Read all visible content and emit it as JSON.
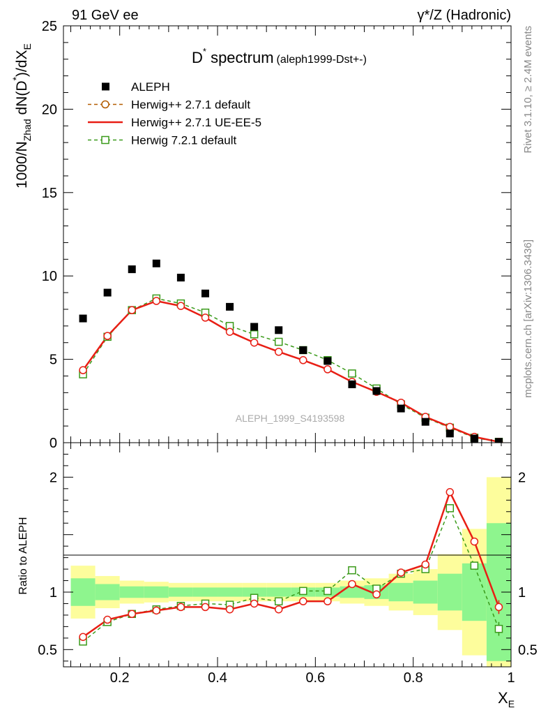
{
  "header": {
    "left": "91 GeV ee",
    "right": "γ*/Z (Hadronic)"
  },
  "side_labels": {
    "rivet": "Rivet 3.1.10, ≥ 2.4M events",
    "mcplots": "mcplots.cern.ch [arXiv:1306.3436]"
  },
  "title": {
    "main_base": "D",
    "main_sup": "*",
    "main_rest": " spectrum",
    "sub": "(aleph1999-Dst+-)"
  },
  "watermark": "ALEPH_1999_S4193598",
  "colors": {
    "data": "#000000",
    "herwigpp_default": "#b35c00",
    "herwigpp_ueee5": "#e81e14",
    "herwig7": "#3a9a1a",
    "band_inner": "#8ef58e",
    "band_outer": "#fdfd9c"
  },
  "chart_data": [
    {
      "type": "scatter",
      "panel": "main",
      "ylabel": "1000/N_Zhad dN(D*)/dX_E",
      "ylabel_parts": {
        "a": "1000/N",
        "a_sub": "Zhad",
        "b": " dN(D",
        "b_sup": "*",
        "c": ")/dX",
        "c_sub": "E"
      },
      "xlim": [
        0.085,
        1.0
      ],
      "ylim": [
        0,
        25
      ],
      "yticks": [
        0,
        5,
        10,
        15,
        20,
        25
      ],
      "x": [
        0.125,
        0.175,
        0.225,
        0.275,
        0.325,
        0.375,
        0.425,
        0.475,
        0.525,
        0.575,
        0.625,
        0.675,
        0.725,
        0.775,
        0.825,
        0.875,
        0.925,
        0.975
      ],
      "series": [
        {
          "name": "ALEPH",
          "key": "data",
          "marker": "square-filled",
          "values": [
            7.45,
            9.0,
            10.4,
            10.75,
            9.9,
            8.95,
            8.15,
            6.95,
            6.75,
            5.55,
            4.9,
            3.5,
            3.1,
            2.05,
            1.25,
            0.55,
            0.25,
            0.05
          ]
        },
        {
          "name": "Herwig++ 2.7.1 default",
          "key": "herwigpp_default",
          "marker": "circle-open",
          "line": "dashed",
          "values": [
            4.35,
            6.4,
            7.95,
            8.5,
            8.2,
            7.5,
            6.65,
            6.0,
            5.45,
            4.95,
            4.4,
            3.65,
            3.05,
            2.4,
            1.55,
            0.95,
            0.35,
            0.05
          ]
        },
        {
          "name": "Herwig++ 2.7.1 UE-EE-5",
          "key": "herwigpp_ueee5",
          "marker": "none",
          "line": "solid",
          "values": [
            4.35,
            6.4,
            7.95,
            8.5,
            8.2,
            7.5,
            6.65,
            6.0,
            5.45,
            4.95,
            4.4,
            3.65,
            3.05,
            2.4,
            1.55,
            0.95,
            0.35,
            0.05
          ]
        },
        {
          "name": "Herwig 7.2.1 default",
          "key": "herwig7",
          "marker": "square-open",
          "line": "dashed",
          "values": [
            4.1,
            6.35,
            7.95,
            8.65,
            8.35,
            7.8,
            7.0,
            6.5,
            6.05,
            5.55,
            4.95,
            4.15,
            3.25,
            2.3,
            1.5,
            0.9,
            0.3,
            0.05
          ]
        }
      ]
    },
    {
      "type": "line",
      "panel": "ratio",
      "ylabel": "Ratio to ALEPH",
      "xlabel": "X_E",
      "xlabel_parts": {
        "a": "X",
        "a_sub": "E"
      },
      "xlim": [
        0.085,
        1.0
      ],
      "ylim": [
        0.35,
        2.3
      ],
      "yticks": [
        0.5,
        1,
        2
      ],
      "ytick_labels": [
        "0.5",
        "1",
        "2"
      ],
      "xticks": [
        0.2,
        0.4,
        0.6,
        0.8,
        1
      ],
      "xtick_labels": [
        "0.2",
        "0.4",
        "0.6",
        "0.8",
        "1"
      ],
      "x": [
        0.125,
        0.175,
        0.225,
        0.275,
        0.325,
        0.375,
        0.425,
        0.475,
        0.525,
        0.575,
        0.625,
        0.675,
        0.725,
        0.775,
        0.825,
        0.875,
        0.925,
        0.975
      ],
      "band_inner": [
        0.12,
        0.07,
        0.05,
        0.05,
        0.04,
        0.04,
        0.04,
        0.04,
        0.04,
        0.04,
        0.04,
        0.05,
        0.06,
        0.08,
        0.1,
        0.16,
        0.25,
        0.6
      ],
      "band_outer": [
        0.23,
        0.14,
        0.1,
        0.09,
        0.08,
        0.08,
        0.08,
        0.08,
        0.08,
        0.08,
        0.08,
        0.1,
        0.12,
        0.16,
        0.2,
        0.33,
        0.55,
        1.0
      ],
      "series": [
        {
          "key": "herwigpp_default",
          "values": [
            0.61,
            0.76,
            0.81,
            0.84,
            0.87,
            0.87,
            0.85,
            0.9,
            0.85,
            0.92,
            0.92,
            1.07,
            0.98,
            1.17,
            1.24,
            1.87,
            1.44,
            0.87
          ],
          "err": [
            0,
            0,
            0,
            0,
            0,
            0,
            0,
            0,
            0,
            0,
            0,
            0,
            0,
            0,
            0,
            0,
            0,
            0.06
          ]
        },
        {
          "key": "herwigpp_ueee5",
          "values": [
            0.61,
            0.76,
            0.81,
            0.84,
            0.87,
            0.87,
            0.85,
            0.9,
            0.85,
            0.92,
            0.92,
            1.07,
            0.98,
            1.17,
            1.24,
            1.87,
            1.44,
            0.87
          ],
          "err": [
            0,
            0,
            0,
            0,
            0,
            0,
            0,
            0,
            0,
            0,
            0,
            0,
            0,
            0,
            0,
            0,
            0,
            0.06
          ]
        },
        {
          "key": "herwig7",
          "values": [
            0.57,
            0.74,
            0.81,
            0.85,
            0.88,
            0.9,
            0.89,
            0.95,
            0.92,
            1.01,
            1.01,
            1.19,
            1.03,
            1.16,
            1.2,
            1.73,
            1.23,
            0.68
          ],
          "err": [
            0,
            0,
            0,
            0,
            0,
            0,
            0,
            0,
            0,
            0,
            0,
            0,
            0,
            0,
            0,
            0,
            0,
            0.06
          ]
        }
      ]
    }
  ]
}
